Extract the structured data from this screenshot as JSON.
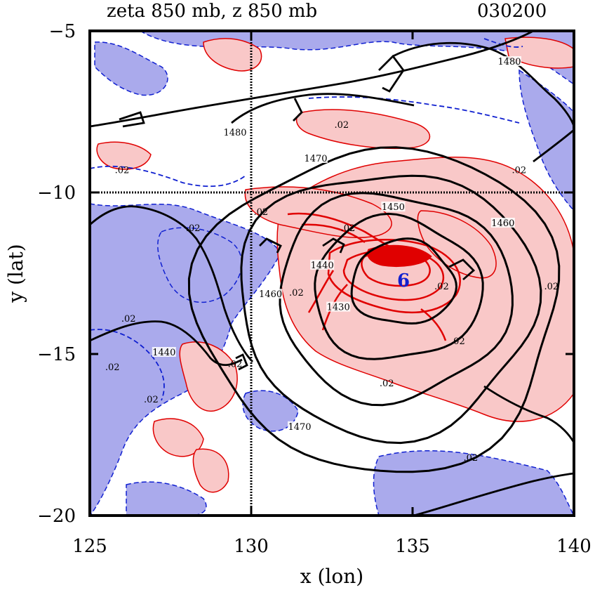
{
  "title": {
    "left": "zeta 850 mb, z 850 mb",
    "right": "030200"
  },
  "chart_data": {
    "type": "contour",
    "xlabel": "x (lon)",
    "ylabel": "y (lat)",
    "xlim": [
      125,
      140
    ],
    "ylim": [
      -20,
      -5
    ],
    "x_ticks": [
      125,
      130,
      135,
      140
    ],
    "x_tick_labels": [
      "125",
      "130",
      "135",
      "140"
    ],
    "y_ticks": [
      -5,
      -10,
      -15,
      -20
    ],
    "y_tick_labels": [
      "−5",
      "−10",
      "−15",
      "−20"
    ],
    "reference_lines": {
      "x": 130,
      "y": -10
    },
    "colors": {
      "positive_fill": "#f9c8c8",
      "negative_fill": "#aaaaec",
      "positive_line": "#e00000",
      "negative_line": "#1020d0",
      "height_line": "#000000"
    },
    "height_contours": [
      {
        "value": 1430,
        "label": "1430",
        "cx": 134.7,
        "cy": -12.8,
        "rx": 1.6,
        "ry": 1.3
      },
      {
        "value": 1440,
        "label": "1440",
        "cx": 134.5,
        "cy": -13.0,
        "rx": 2.6,
        "ry": 2.2
      },
      {
        "value": 1450,
        "label": "1450",
        "cx": 134.4,
        "cy": -13.2,
        "rx": 3.6,
        "ry": 3.2
      },
      {
        "value": 1460,
        "label": "1460",
        "cx": 134.2,
        "cy": -13.4,
        "rx": 4.6,
        "ry": 4.1
      },
      {
        "value": 1470,
        "label": "1470",
        "cx": 134.0,
        "cy": -13.6,
        "rx": 5.6,
        "ry": 5.0
      }
    ],
    "height_labels": [
      {
        "text": "1450",
        "x": 134.4,
        "y": -10.5
      },
      {
        "text": "1430",
        "x": 132.7,
        "y": -13.6
      },
      {
        "text": "1460",
        "x": 137.8,
        "y": -11.0
      },
      {
        "text": "1470",
        "x": 132.0,
        "y": -9.0
      },
      {
        "text": "1470",
        "x": 131.5,
        "y": -17.3
      },
      {
        "text": "1480",
        "x": 129.5,
        "y": -8.2
      },
      {
        "text": "1480",
        "x": 138.0,
        "y": -6.0
      },
      {
        "text": "1460",
        "x": 130.6,
        "y": -13.2
      },
      {
        "text": "1440",
        "x": 132.2,
        "y": -12.3
      },
      {
        "text": "1440",
        "x": 127.3,
        "y": -15.0
      }
    ],
    "vorticity_labels": [
      {
        "text": ".02",
        "x": 132.8,
        "y": -8.0
      },
      {
        "text": ".02",
        "x": 138.3,
        "y": -9.4
      },
      {
        "text": ".02",
        "x": 139.3,
        "y": -13.0
      },
      {
        "text": ".02",
        "x": 133.0,
        "y": -11.2
      },
      {
        "text": ".02",
        "x": 130.3,
        "y": -10.7
      },
      {
        "text": ".02",
        "x": 128.2,
        "y": -11.2
      },
      {
        "text": ".02",
        "x": 136.4,
        "y": -14.7
      },
      {
        "text": ".02",
        "x": 134.2,
        "y": -16.0
      },
      {
        "text": ".02",
        "x": 136.8,
        "y": -18.3
      },
      {
        "text": ".02",
        "x": 126.9,
        "y": -16.5
      },
      {
        "text": ".02",
        "x": 125.7,
        "y": -15.5
      },
      {
        "text": ".02",
        "x": 126.0,
        "y": -9.4
      },
      {
        "text": ".02",
        "x": 126.2,
        "y": -14.0
      },
      {
        "text": ".02",
        "x": 129.5,
        "y": -15.4
      },
      {
        "text": ".02",
        "x": 131.4,
        "y": -13.2
      },
      {
        "text": ".02",
        "x": 135.9,
        "y": -13.0
      }
    ]
  }
}
